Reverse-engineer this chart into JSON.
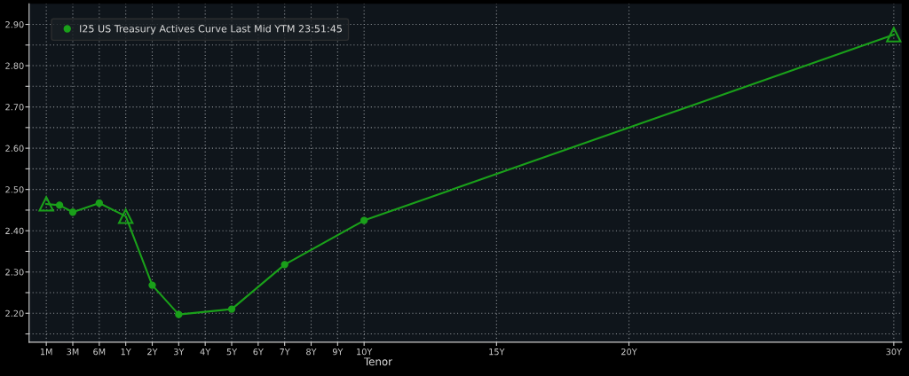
{
  "chart_data": {
    "type": "line",
    "xlabel": "Tenor",
    "categories": [
      "1M",
      null,
      "3M",
      null,
      "6M",
      null,
      "1Y",
      null,
      "2Y",
      null,
      "3Y",
      null,
      "4Y",
      null,
      "5Y",
      null,
      "6Y",
      null,
      "7Y",
      null,
      "8Y",
      null,
      "9Y",
      null,
      "10Y",
      null,
      null,
      null,
      null,
      null,
      null,
      null,
      null,
      null,
      "15Y",
      null,
      null,
      null,
      null,
      null,
      null,
      null,
      null,
      null,
      "20Y",
      null,
      null,
      null,
      null,
      null,
      null,
      null,
      null,
      null,
      null,
      null,
      null,
      null,
      null,
      null,
      null,
      null,
      null,
      null,
      "30Y"
    ],
    "series": [
      {
        "name": "I25 US Treasury Actives Curve Last Mid YTM 23:51:45",
        "color": "#1aa01a",
        "values": [
          2.465,
          2.462,
          2.445,
          null,
          2.467,
          null,
          2.435,
          null,
          2.268,
          null,
          2.197,
          null,
          null,
          null,
          2.21,
          null,
          null,
          null,
          2.318,
          null,
          null,
          null,
          null,
          null,
          2.425,
          null,
          null,
          null,
          null,
          null,
          null,
          null,
          null,
          null,
          null,
          null,
          null,
          null,
          null,
          null,
          null,
          null,
          null,
          null,
          null,
          null,
          null,
          null,
          null,
          null,
          null,
          null,
          null,
          null,
          null,
          null,
          null,
          null,
          null,
          null,
          null,
          null,
          null,
          null,
          2.875
        ],
        "marker": [
          "triangle",
          "circle",
          "circle",
          null,
          "circle",
          null,
          "triangle",
          null,
          "circle",
          null,
          "circle",
          null,
          null,
          null,
          "circle",
          null,
          null,
          null,
          "circle",
          null,
          null,
          null,
          null,
          null,
          "circle",
          null,
          null,
          null,
          null,
          null,
          null,
          null,
          null,
          null,
          null,
          null,
          null,
          null,
          null,
          null,
          null,
          null,
          null,
          null,
          null,
          null,
          null,
          null,
          null,
          null,
          null,
          null,
          null,
          null,
          null,
          null,
          null,
          null,
          null,
          null,
          null,
          null,
          null,
          null,
          "triangle"
        ]
      }
    ],
    "ylim": [
      2.13,
      2.95
    ],
    "yticks": [
      {
        "value": 2.15,
        "label": null
      },
      {
        "value": 2.2,
        "label": "2.20"
      },
      {
        "value": 2.25,
        "label": null
      },
      {
        "value": 2.3,
        "label": "2.30"
      },
      {
        "value": 2.35,
        "label": null
      },
      {
        "value": 2.4,
        "label": "2.40"
      },
      {
        "value": 2.45,
        "label": null
      },
      {
        "value": 2.5,
        "label": "2.50"
      },
      {
        "value": 2.55,
        "label": null
      },
      {
        "value": 2.6,
        "label": "2.60"
      },
      {
        "value": 2.65,
        "label": null
      },
      {
        "value": 2.7,
        "label": "2.70"
      },
      {
        "value": 2.75,
        "label": null
      },
      {
        "value": 2.8,
        "label": "2.80"
      },
      {
        "value": 2.85,
        "label": null
      },
      {
        "value": 2.9,
        "label": "2.90"
      }
    ],
    "grid": true,
    "legend": "top left",
    "line_style": "solid"
  }
}
